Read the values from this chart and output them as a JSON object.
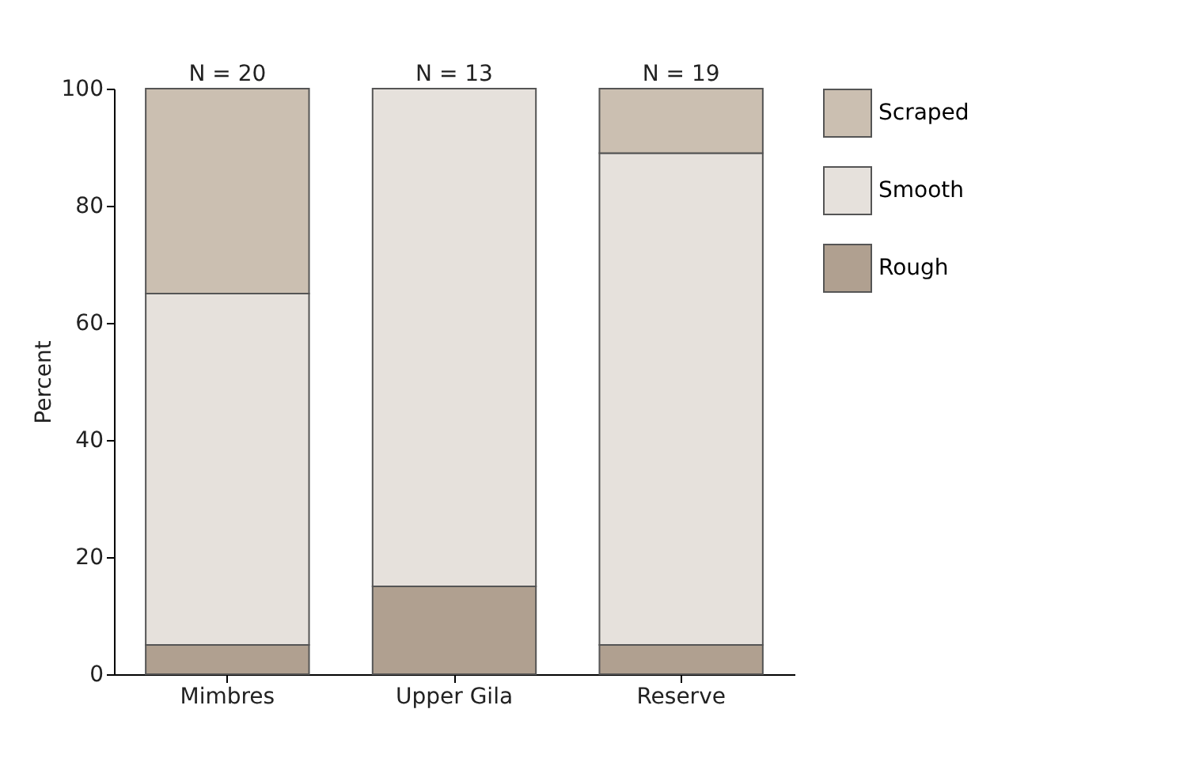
{
  "chart_data": {
    "type": "bar",
    "ylabel": "Percent",
    "categories": [
      "Mimbres",
      "Upper Gila",
      "Reserve"
    ],
    "stacked": true,
    "series": [
      {
        "name": "Rough",
        "color": "#b0a090",
        "values": [
          5,
          15,
          5
        ]
      },
      {
        "name": "Smooth",
        "color": "#e6e1dc",
        "values": [
          60,
          85,
          84
        ]
      },
      {
        "name": "Scraped",
        "color": "#cbbfb1",
        "values": [
          35,
          0,
          11
        ]
      }
    ],
    "ylim": [
      0,
      100
    ],
    "yticks": [
      0,
      20,
      40,
      60,
      80,
      100
    ],
    "grid": false,
    "legend": "top right",
    "annotations": [
      {
        "text": "N = 20",
        "x": "Mimbres",
        "y": 100
      },
      {
        "text": "N = 13",
        "x": "Upper Gila",
        "y": 100
      },
      {
        "text": "N = 19",
        "x": "Reserve",
        "y": 100
      }
    ]
  }
}
